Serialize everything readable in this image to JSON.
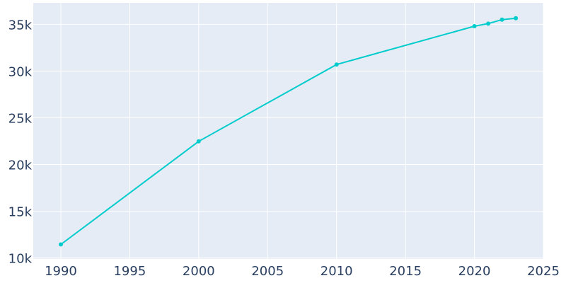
{
  "chart_data": {
    "type": "line",
    "title": "",
    "xlabel": "",
    "ylabel": "",
    "x": [
      1990,
      2000,
      2010,
      2020,
      2021,
      2022,
      2023
    ],
    "series": [
      {
        "values": [
          11450,
          22480,
          30700,
          34800,
          35080,
          35500,
          35650
        ]
      }
    ],
    "xlim": [
      1988,
      2025
    ],
    "ylim": [
      9900,
      37300
    ],
    "x_ticks": [
      1990,
      1995,
      2000,
      2005,
      2010,
      2015,
      2020,
      2025
    ],
    "x_tick_labels": [
      "1990",
      "1995",
      "2000",
      "2005",
      "2010",
      "2015",
      "2020",
      "2025"
    ],
    "y_ticks": [
      10000,
      15000,
      20000,
      25000,
      30000,
      35000
    ],
    "y_tick_labels": [
      "10k",
      "15k",
      "20k",
      "25k",
      "30k",
      "35k"
    ],
    "grid": true,
    "legend": "none",
    "colors": {
      "line": "#00cccc",
      "plot_bg": "#e5ecf6",
      "grid": "#ffffff",
      "text": "#2a3f5f"
    }
  }
}
